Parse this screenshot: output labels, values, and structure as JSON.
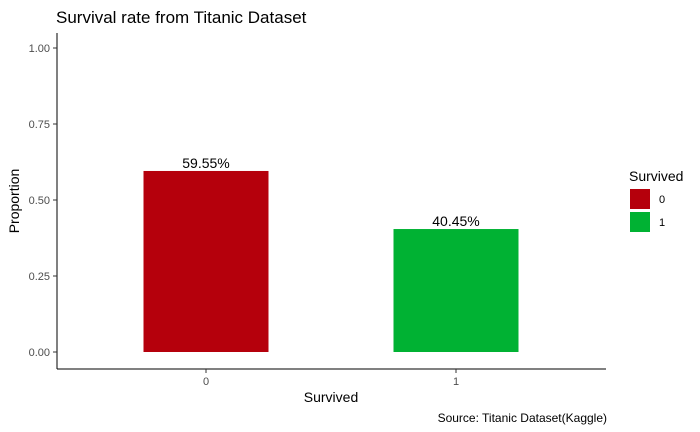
{
  "chart_data": {
    "type": "bar",
    "title": "Survival rate from Titanic Dataset",
    "xlabel": "Survived",
    "ylabel": "Proportion",
    "categories": [
      "0",
      "1"
    ],
    "values": [
      0.5955,
      0.4045
    ],
    "data_labels": [
      "59.55%",
      "40.45%"
    ],
    "colors": [
      "#B5000C",
      "#00B233"
    ],
    "ylim": [
      0,
      1
    ],
    "yticks": [
      0,
      0.25,
      0.5,
      0.75,
      1
    ],
    "ytick_labels": [
      "0.00",
      "0.25",
      "0.50",
      "0.75",
      "1.00"
    ],
    "grid": false,
    "legend": {
      "title": "Survived",
      "position": "right",
      "entries": [
        {
          "label": "0",
          "color": "#B5000C"
        },
        {
          "label": "1",
          "color": "#00B233"
        }
      ]
    },
    "caption": "Source: Titanic Dataset(Kaggle)"
  }
}
